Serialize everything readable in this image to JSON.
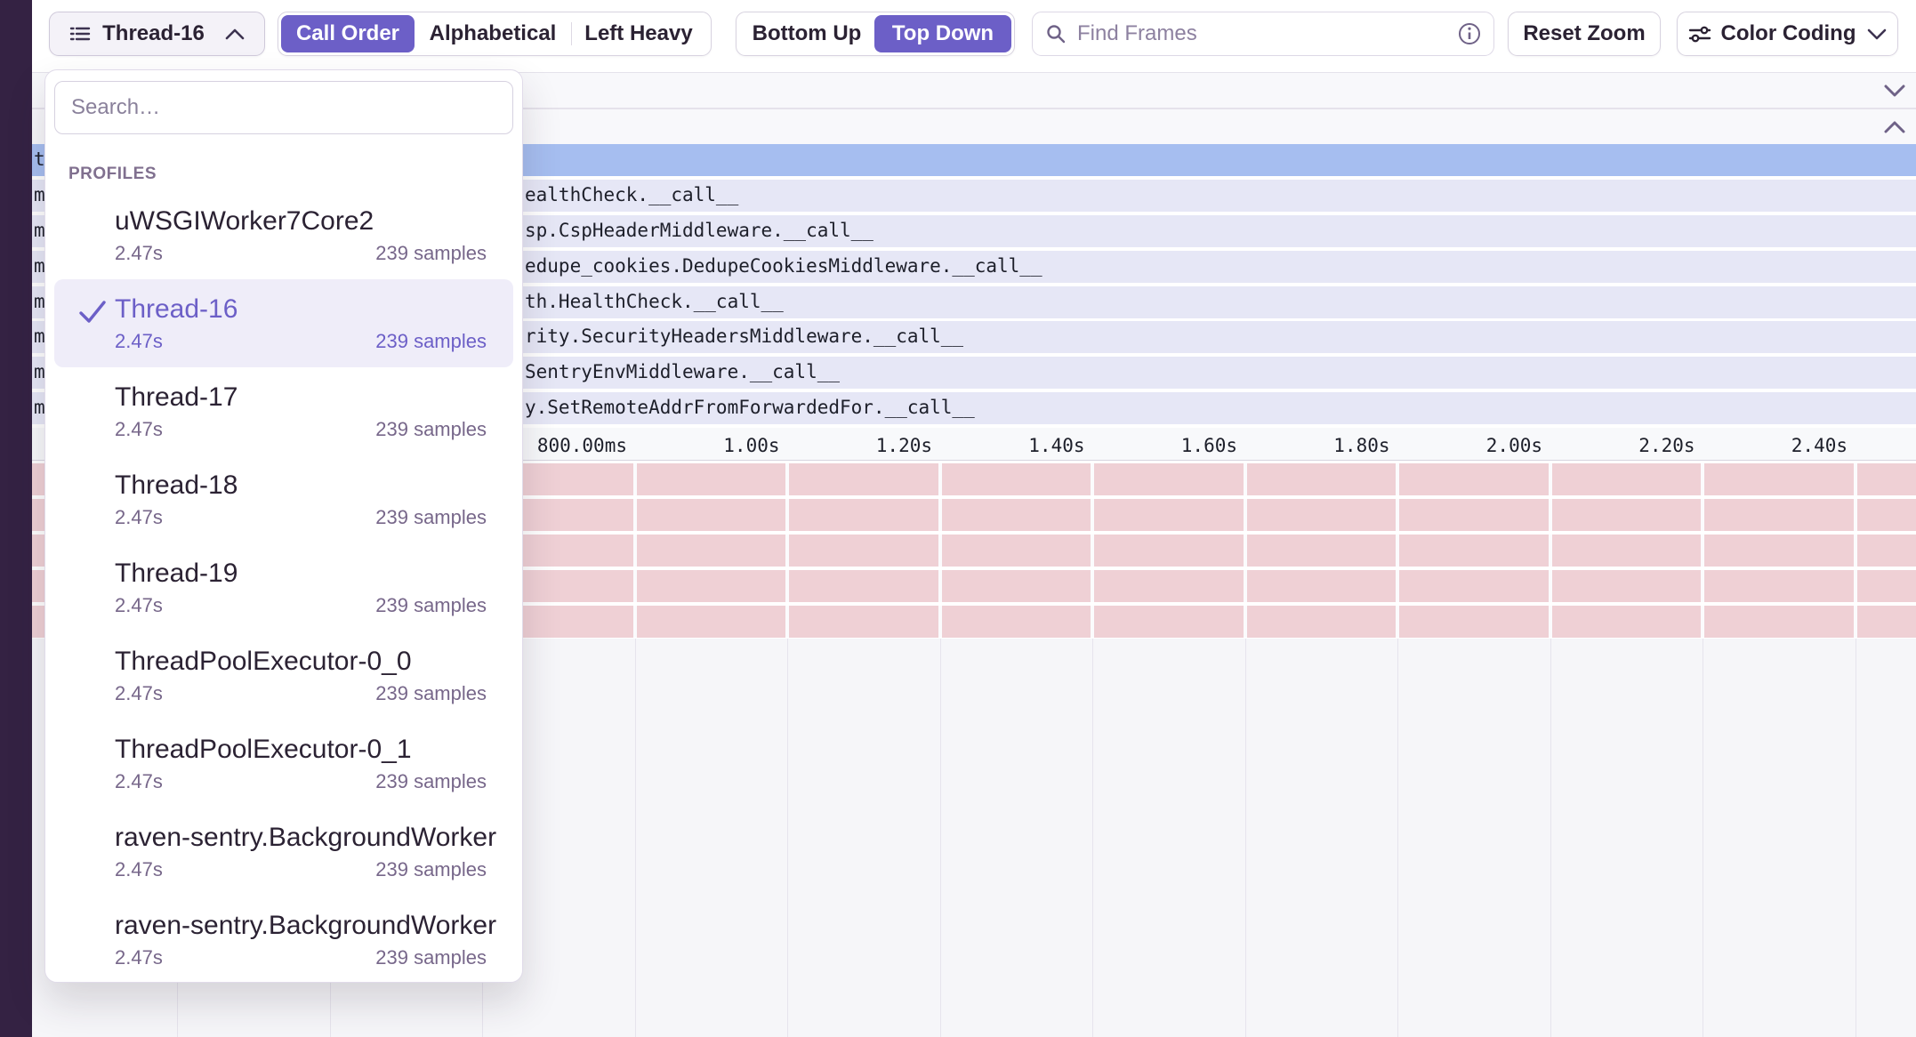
{
  "toolbar": {
    "thread_selector": {
      "label": "Thread-16"
    },
    "sort_segments": [
      {
        "label": "Call Order",
        "selected": true
      },
      {
        "label": "Alphabetical",
        "selected": false
      },
      {
        "label": "Left Heavy",
        "selected": false
      }
    ],
    "direction_segments": [
      {
        "label": "Bottom Up",
        "selected": false
      },
      {
        "label": "Top Down",
        "selected": true
      }
    ],
    "find_frames": {
      "placeholder": "Find Frames"
    },
    "reset_zoom_label": "Reset Zoom",
    "color_coding_label": "Color Coding"
  },
  "dropdown": {
    "search_placeholder": "Search…",
    "section_label": "PROFILES",
    "items": [
      {
        "name": "uWSGIWorker7Core2",
        "duration": "2.47s",
        "samples": "239 samples",
        "selected": false
      },
      {
        "name": "Thread-16",
        "duration": "2.47s",
        "samples": "239 samples",
        "selected": true
      },
      {
        "name": "Thread-17",
        "duration": "2.47s",
        "samples": "239 samples",
        "selected": false
      },
      {
        "name": "Thread-18",
        "duration": "2.47s",
        "samples": "239 samples",
        "selected": false
      },
      {
        "name": "Thread-19",
        "duration": "2.47s",
        "samples": "239 samples",
        "selected": false
      },
      {
        "name": "ThreadPoolExecutor-0_0",
        "duration": "2.47s",
        "samples": "239 samples",
        "selected": false
      },
      {
        "name": "ThreadPoolExecutor-0_1",
        "duration": "2.47s",
        "samples": "239 samples",
        "selected": false
      },
      {
        "name": "raven-sentry.BackgroundWorker",
        "duration": "2.47s",
        "samples": "239 samples",
        "selected": false
      },
      {
        "name": "raven-sentry.BackgroundWorker",
        "duration": "2.47s",
        "samples": "239 samples",
        "selected": false
      }
    ]
  },
  "flamegraph": {
    "root_row": {
      "clipped": "t"
    },
    "rows": [
      {
        "clipped": "m",
        "text": "ealthCheck.__call__"
      },
      {
        "clipped": "m",
        "text": "sp.CspHeaderMiddleware.__call__"
      },
      {
        "clipped": "m",
        "text": "edupe_cookies.DedupeCookiesMiddleware.__call__"
      },
      {
        "clipped": "m",
        "text": "th.HealthCheck.__call__"
      },
      {
        "clipped": "m",
        "text": "rity.SecurityHeadersMiddleware.__call__"
      },
      {
        "clipped": "m",
        "text": "SentryEnvMiddleware.__call__"
      },
      {
        "clipped": "m",
        "text": "y.SetRemoteAddrFromForwardedFor.__call__"
      }
    ],
    "axis_ticks": [
      "800.00ms",
      "1.00s",
      "1.20s",
      "1.40s",
      "1.60s",
      "1.80s",
      "2.00s",
      "2.20s",
      "2.40s"
    ],
    "hidden_lane_count": 5,
    "colors": {
      "accent_purple": "#6C5FC7",
      "selected_row_blue": "#a6bef0",
      "frame_row_lavender": "#e6e7f6",
      "sample_row_pink": "#efd0d5",
      "sidebar_strip": "#342243"
    }
  }
}
